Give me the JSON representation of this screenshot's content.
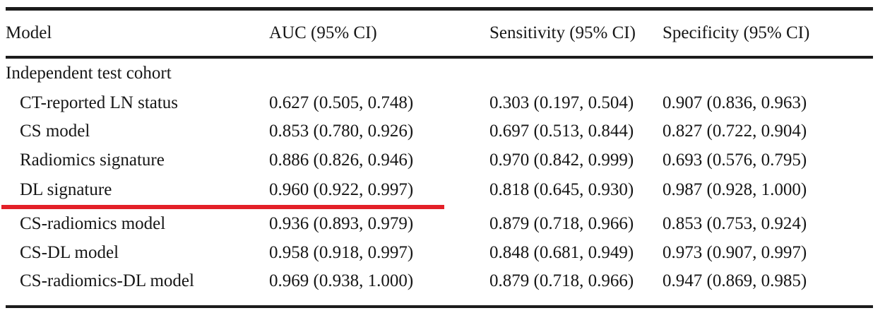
{
  "table": {
    "columns": [
      "Model",
      "AUC (95% CI)",
      "Sensitivity (95% CI)",
      "Specificity (95% CI)"
    ],
    "section": "Independent test cohort",
    "rows": [
      {
        "model": "CT-reported LN status",
        "auc": "0.627 (0.505, 0.748)",
        "sensitivity": "0.303 (0.197, 0.504)",
        "specificity": "0.907 (0.836, 0.963)"
      },
      {
        "model": "CS model",
        "auc": "0.853 (0.780, 0.926)",
        "sensitivity": "0.697 (0.513, 0.844)",
        "specificity": "0.827 (0.722, 0.904)"
      },
      {
        "model": "Radiomics signature",
        "auc": "0.886 (0.826, 0.946)",
        "sensitivity": "0.970 (0.842, 0.999)",
        "specificity": "0.693 (0.576, 0.795)"
      },
      {
        "model": "DL signature",
        "auc": "0.960 (0.922, 0.997)",
        "sensitivity": "0.818 (0.645, 0.930)",
        "specificity": "0.987 (0.928, 1.000)",
        "highlighted": true
      },
      {
        "model": "CS-radiomics model",
        "auc": "0.936 (0.893, 0.979)",
        "sensitivity": "0.879 (0.718, 0.966)",
        "specificity": "0.853 (0.753, 0.924)"
      },
      {
        "model": "CS-DL model",
        "auc": "0.958 (0.918, 0.997)",
        "sensitivity": "0.848 (0.681, 0.949)",
        "specificity": "0.973 (0.907, 0.997)"
      },
      {
        "model": "CS-radiomics-DL model",
        "auc": "0.969 (0.938, 1.000)",
        "sensitivity": "0.879 (0.718, 0.966)",
        "specificity": "0.947 (0.869, 0.985)"
      }
    ],
    "annotation": {
      "type": "red-underline",
      "target_row": "DL signature",
      "color": "#e32028"
    }
  },
  "chart_data": {
    "type": "table",
    "title": "",
    "section": "Independent test cohort",
    "columns": [
      "Model",
      "AUC (95% CI)",
      "Sensitivity (95% CI)",
      "Specificity (95% CI)"
    ],
    "series": [
      {
        "name": "CT-reported LN status",
        "auc": 0.627,
        "auc_ci": [
          0.505,
          0.748
        ],
        "sensitivity": 0.303,
        "sensitivity_ci": [
          0.197,
          0.504
        ],
        "specificity": 0.907,
        "specificity_ci": [
          0.836,
          0.963
        ]
      },
      {
        "name": "CS model",
        "auc": 0.853,
        "auc_ci": [
          0.78,
          0.926
        ],
        "sensitivity": 0.697,
        "sensitivity_ci": [
          0.513,
          0.844
        ],
        "specificity": 0.827,
        "specificity_ci": [
          0.722,
          0.904
        ]
      },
      {
        "name": "Radiomics signature",
        "auc": 0.886,
        "auc_ci": [
          0.826,
          0.946
        ],
        "sensitivity": 0.97,
        "sensitivity_ci": [
          0.842,
          0.999
        ],
        "specificity": 0.693,
        "specificity_ci": [
          0.576,
          0.795
        ]
      },
      {
        "name": "DL signature",
        "auc": 0.96,
        "auc_ci": [
          0.922,
          0.997
        ],
        "sensitivity": 0.818,
        "sensitivity_ci": [
          0.645,
          0.93
        ],
        "specificity": 0.987,
        "specificity_ci": [
          0.928,
          1.0
        ]
      },
      {
        "name": "CS-radiomics model",
        "auc": 0.936,
        "auc_ci": [
          0.893,
          0.979
        ],
        "sensitivity": 0.879,
        "sensitivity_ci": [
          0.718,
          0.966
        ],
        "specificity": 0.853,
        "specificity_ci": [
          0.753,
          0.924
        ]
      },
      {
        "name": "CS-DL model",
        "auc": 0.958,
        "auc_ci": [
          0.918,
          0.997
        ],
        "sensitivity": 0.848,
        "sensitivity_ci": [
          0.681,
          0.949
        ],
        "specificity": 0.973,
        "specificity_ci": [
          0.907,
          0.997
        ]
      },
      {
        "name": "CS-radiomics-DL model",
        "auc": 0.969,
        "auc_ci": [
          0.938,
          1.0
        ],
        "sensitivity": 0.879,
        "sensitivity_ci": [
          0.718,
          0.966
        ],
        "specificity": 0.947,
        "specificity_ci": [
          0.869,
          0.985
        ]
      }
    ]
  }
}
